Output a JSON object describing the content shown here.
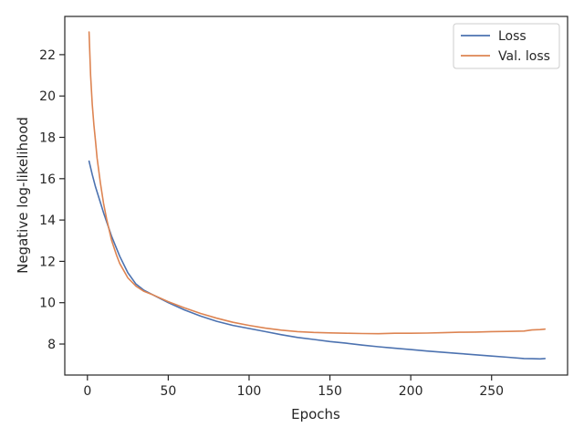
{
  "chart_data": {
    "type": "line",
    "title": "",
    "xlabel": "Epochs",
    "ylabel": "Negative log-likelihood",
    "xlim": [
      -14,
      297
    ],
    "ylim": [
      6.5,
      23.85
    ],
    "xticks": [
      0,
      50,
      100,
      150,
      200,
      250
    ],
    "yticks": [
      8,
      10,
      12,
      14,
      16,
      18,
      20,
      22
    ],
    "grid": false,
    "legend_position": "top-right",
    "series": [
      {
        "name": "Loss",
        "color": "#4c72b0",
        "x": [
          1,
          3,
          5,
          8,
          10,
          15,
          20,
          25,
          30,
          35,
          40,
          50,
          60,
          70,
          80,
          90,
          100,
          110,
          120,
          130,
          140,
          150,
          160,
          170,
          180,
          190,
          200,
          210,
          220,
          230,
          240,
          250,
          260,
          270,
          275,
          280,
          283
        ],
        "y": [
          16.85,
          16.2,
          15.6,
          14.85,
          14.35,
          13.2,
          12.25,
          11.45,
          10.9,
          10.6,
          10.4,
          10.0,
          9.65,
          9.35,
          9.1,
          8.9,
          8.75,
          8.6,
          8.45,
          8.32,
          8.22,
          8.12,
          8.04,
          7.95,
          7.87,
          7.8,
          7.73,
          7.66,
          7.6,
          7.54,
          7.48,
          7.42,
          7.36,
          7.3,
          7.29,
          7.28,
          7.3
        ]
      },
      {
        "name": "Val. loss",
        "color": "#dd8452",
        "x": [
          1,
          2,
          3,
          4,
          5,
          6,
          8,
          10,
          12,
          15,
          18,
          20,
          25,
          30,
          35,
          40,
          50,
          60,
          70,
          80,
          90,
          100,
          110,
          120,
          130,
          140,
          150,
          160,
          170,
          180,
          190,
          200,
          210,
          220,
          230,
          240,
          250,
          260,
          270,
          275,
          280,
          283
        ],
        "y": [
          23.1,
          21.0,
          19.6,
          18.6,
          17.8,
          17.0,
          15.8,
          14.8,
          14.0,
          13.0,
          12.3,
          11.9,
          11.2,
          10.8,
          10.55,
          10.4,
          10.05,
          9.75,
          9.48,
          9.25,
          9.05,
          8.9,
          8.77,
          8.67,
          8.6,
          8.56,
          8.54,
          8.52,
          8.51,
          8.5,
          8.52,
          8.52,
          8.53,
          8.55,
          8.57,
          8.58,
          8.6,
          8.61,
          8.63,
          8.68,
          8.7,
          8.72
        ]
      }
    ]
  }
}
